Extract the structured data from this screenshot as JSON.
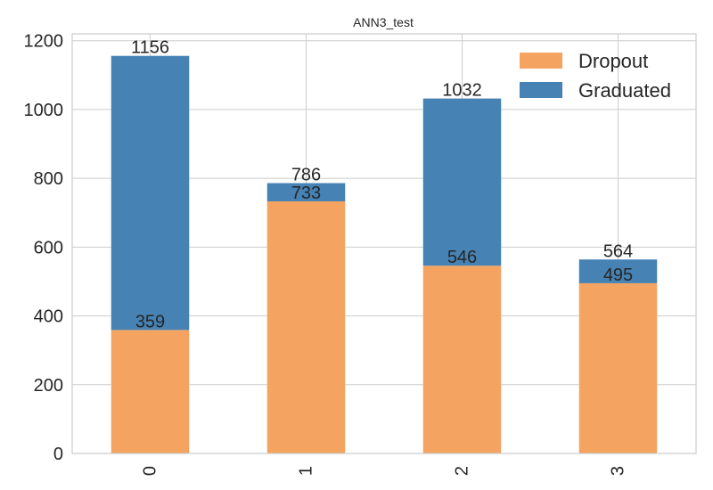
{
  "chart_data": {
    "type": "bar",
    "stacked": true,
    "title": "ANN3_test",
    "xlabel": "",
    "ylabel": "",
    "categories": [
      "0",
      "1",
      "2",
      "3"
    ],
    "series": [
      {
        "name": "Dropout",
        "color": "#F4A460",
        "values": [
          359,
          733,
          546,
          495
        ]
      },
      {
        "name": "Graduated",
        "color": "#4682B4",
        "values": [
          797,
          53,
          486,
          69
        ]
      }
    ],
    "totals": [
      1156,
      786,
      1032,
      564
    ],
    "ylim": [
      0,
      1220
    ],
    "yticks": [
      0,
      200,
      400,
      600,
      800,
      1000,
      1200
    ],
    "grid": true,
    "legend": "top-right"
  }
}
